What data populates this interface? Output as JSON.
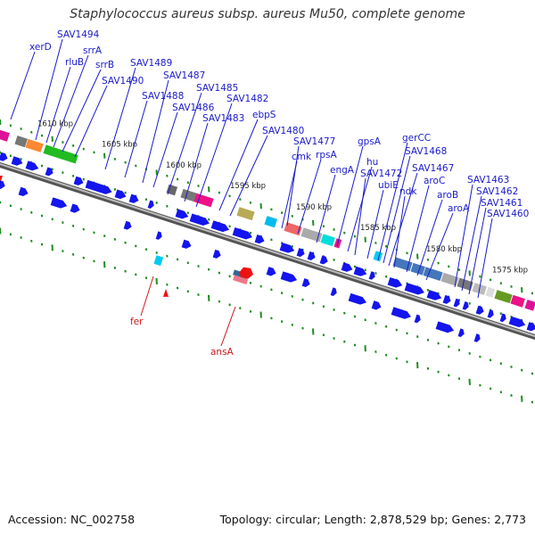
{
  "title": "Staphylococcus aureus subsp. aureus Mu50, complete genome",
  "footer": {
    "accession": "Accession: NC_002758",
    "summary": "Topology: circular; Length: 2,878,529 bp; Genes: 2,773"
  },
  "colors": {
    "backbone": "#888888",
    "gene_fwd": "#1414ee",
    "label_fwd": "#1a1acc",
    "label_rev": "#cc1a1a",
    "tick_dot": "#1e8c1e"
  },
  "position_markers": [
    "1610 kbp",
    "1605 kbp",
    "1600 kbp",
    "1595 kbp",
    "1590 kbp",
    "1585 kbp",
    "1580 kbp",
    "1575 kbp"
  ],
  "top_labels": [
    "xerD",
    "SAV1494",
    "rluB",
    "srrA",
    "srrB",
    "SAV1490",
    "SAV1489",
    "SAV1488",
    "SAV1487",
    "SAV1486",
    "SAV1485",
    "SAV1483",
    "SAV1482",
    "ebpS",
    "SAV1480",
    "cmk",
    "SAV1477",
    "rpsA",
    "engA",
    "gpsA",
    "hu",
    "SAV1472",
    "ubiE",
    "gerCC",
    "SAV1468",
    "SAV1467",
    "ndk",
    "aroC",
    "aroB",
    "aroA",
    "SAV1463",
    "SAV1462",
    "SAV1461",
    "SAV1460"
  ],
  "bottom_labels": [
    "fer",
    "ansA"
  ]
}
